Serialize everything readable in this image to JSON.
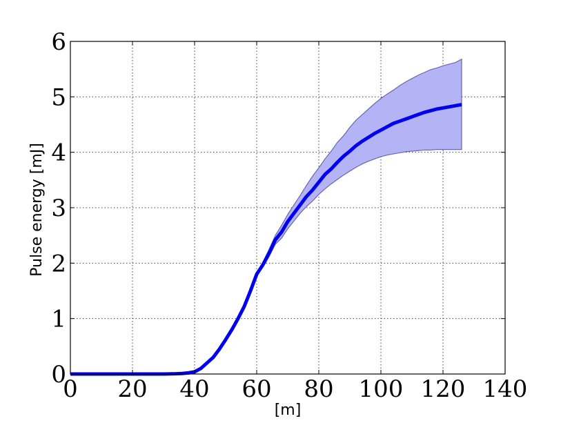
{
  "chart_data": {
    "type": "line",
    "title": "",
    "xlabel": "[m]",
    "ylabel": "Pulse energy [mJ]",
    "xlim": [
      0,
      140
    ],
    "ylim": [
      0,
      6
    ],
    "xticks": [
      0,
      20,
      40,
      60,
      80,
      100,
      120,
      140
    ],
    "yticks": [
      0,
      1,
      2,
      3,
      4,
      5,
      6
    ],
    "xtick_labels": [
      "0",
      "20",
      "40",
      "60",
      "80",
      "100",
      "120",
      "140"
    ],
    "ytick_labels": [
      "0",
      "1",
      "2",
      "3",
      "4",
      "5",
      "6"
    ],
    "grid": true,
    "legend": "none",
    "series": [
      {
        "kind": "line",
        "color": "#0000ee",
        "x": [
          0,
          10,
          20,
          30,
          34,
          36,
          38,
          40,
          42,
          44,
          46,
          48,
          50,
          52,
          54,
          56,
          58,
          60,
          62,
          64,
          66,
          68,
          70,
          72,
          74,
          76,
          78,
          80,
          82,
          84,
          86,
          88,
          90,
          92,
          94,
          96,
          98,
          100,
          102,
          104,
          106,
          108,
          110,
          112,
          114,
          116,
          118,
          120,
          122,
          124,
          126
        ],
        "y": [
          0,
          0,
          0,
          0,
          0.005,
          0.01,
          0.02,
          0.04,
          0.1,
          0.2,
          0.3,
          0.45,
          0.62,
          0.8,
          1.0,
          1.22,
          1.5,
          1.8,
          1.97,
          2.18,
          2.42,
          2.56,
          2.75,
          2.9,
          3.05,
          3.2,
          3.32,
          3.46,
          3.6,
          3.7,
          3.82,
          3.93,
          4.02,
          4.12,
          4.2,
          4.27,
          4.34,
          4.4,
          4.46,
          4.52,
          4.56,
          4.6,
          4.64,
          4.68,
          4.72,
          4.75,
          4.78,
          4.8,
          4.82,
          4.84,
          4.86
        ]
      },
      {
        "kind": "band",
        "color": "#b3b3f5",
        "edge_color": "#6666aa",
        "x": [
          60,
          62,
          64,
          66,
          68,
          70,
          72,
          74,
          76,
          78,
          80,
          82,
          84,
          86,
          88,
          90,
          92,
          94,
          96,
          98,
          100,
          102,
          104,
          106,
          108,
          110,
          112,
          114,
          116,
          118,
          120,
          122,
          124,
          126
        ],
        "y_upper": [
          1.82,
          2.02,
          2.25,
          2.5,
          2.68,
          2.88,
          3.05,
          3.22,
          3.4,
          3.57,
          3.72,
          3.88,
          4.02,
          4.18,
          4.3,
          4.45,
          4.58,
          4.68,
          4.78,
          4.88,
          4.97,
          5.05,
          5.12,
          5.2,
          5.27,
          5.33,
          5.39,
          5.44,
          5.49,
          5.52,
          5.56,
          5.59,
          5.62,
          5.68
        ],
        "y_lower": [
          1.78,
          1.93,
          2.12,
          2.34,
          2.45,
          2.62,
          2.76,
          2.9,
          3.02,
          3.12,
          3.24,
          3.34,
          3.43,
          3.51,
          3.59,
          3.66,
          3.73,
          3.79,
          3.84,
          3.88,
          3.92,
          3.95,
          3.97,
          3.99,
          4.01,
          4.02,
          4.03,
          4.04,
          4.04,
          4.05,
          4.05,
          4.05,
          4.05,
          4.05
        ]
      }
    ]
  }
}
